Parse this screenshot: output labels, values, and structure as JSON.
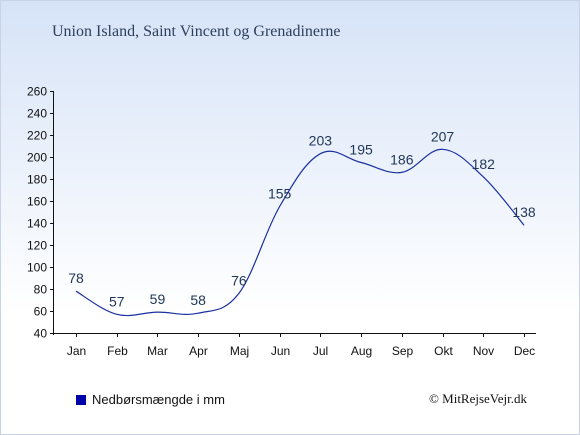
{
  "chart_data": {
    "type": "line",
    "title": "Union Island, Saint Vincent og Grenadinerne",
    "categories": [
      "Jan",
      "Feb",
      "Mar",
      "Apr",
      "Maj",
      "Jun",
      "Jul",
      "Aug",
      "Sep",
      "Okt",
      "Nov",
      "Dec"
    ],
    "series": [
      {
        "name": "Nedbørsmængde i mm",
        "values": [
          78,
          57,
          59,
          58,
          76,
          155,
          203,
          195,
          186,
          207,
          182,
          138
        ],
        "color": "#1a2fa0"
      }
    ],
    "yticks": [
      40,
      60,
      80,
      100,
      120,
      140,
      160,
      180,
      200,
      220,
      240,
      260
    ],
    "ylim": [
      40,
      260
    ],
    "grid": false,
    "legend_position": "bottom-left"
  },
  "legend": {
    "label": "Nedbørsmængde i mm",
    "color": "#0000a8"
  },
  "footer": {
    "copyright": "© MitRejseVejr.dk"
  }
}
